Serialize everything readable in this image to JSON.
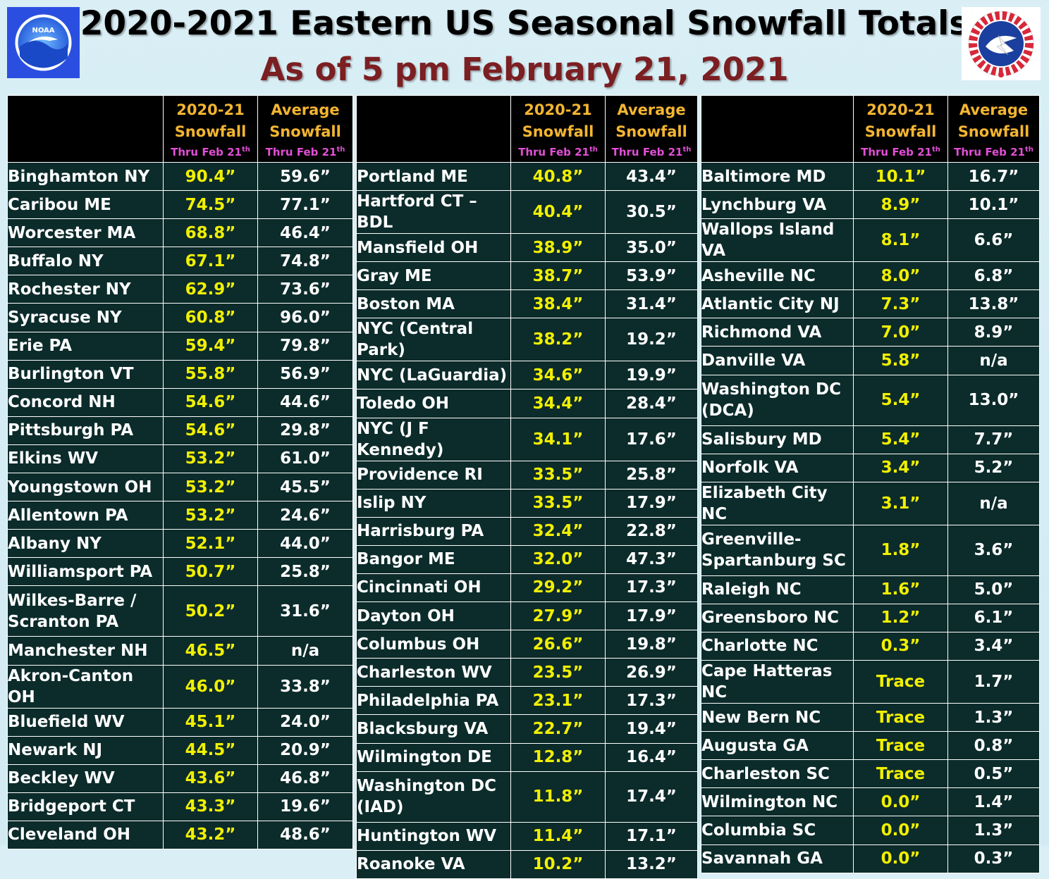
{
  "header": {
    "title": "2020-2021 Eastern US Seasonal Snowfall Totals",
    "subtitle": "As of 5 pm February 21, 2021",
    "left_logo": "NOAA",
    "right_logo": "National Weather Service"
  },
  "columns": {
    "current_l1": "2020-21",
    "current_l2": "Snowfall",
    "average_l1": "Average",
    "average_l2": "Snowfall",
    "thru": "Thru Feb 21",
    "thru_sup": "th"
  },
  "colors": {
    "current": "#f0f000",
    "header_gold": "#f3b531",
    "header_pink": "#e24fd6",
    "cell_bg": "#0c2b2b",
    "title_red": "#7b1f22"
  },
  "tables": [
    {
      "rows": [
        {
          "city": "Binghamton NY",
          "current": "90.4”",
          "average": "59.6”"
        },
        {
          "city": "Caribou ME",
          "current": "74.5”",
          "average": "77.1”"
        },
        {
          "city": "Worcester MA",
          "current": "68.8”",
          "average": "46.4”"
        },
        {
          "city": "Buffalo NY",
          "current": "67.1”",
          "average": "74.8”"
        },
        {
          "city": "Rochester NY",
          "current": "62.9”",
          "average": "73.6”"
        },
        {
          "city": "Syracuse NY",
          "current": "60.8”",
          "average": "96.0”"
        },
        {
          "city": "Erie PA",
          "current": "59.4”",
          "average": "79.8”"
        },
        {
          "city": "Burlington VT",
          "current": "55.8”",
          "average": "56.9”"
        },
        {
          "city": "Concord NH",
          "current": "54.6”",
          "average": "44.6”"
        },
        {
          "city": "Pittsburgh PA",
          "current": "54.6”",
          "average": "29.8”"
        },
        {
          "city": "Elkins WV",
          "current": "53.2”",
          "average": "61.0”"
        },
        {
          "city": "Youngstown OH",
          "current": "53.2”",
          "average": "45.5”"
        },
        {
          "city": "Allentown PA",
          "current": "53.2”",
          "average": "24.6”"
        },
        {
          "city": "Albany NY",
          "current": "52.1”",
          "average": "44.0”"
        },
        {
          "city": "Williamsport PA",
          "current": "50.7”",
          "average": "25.8”"
        },
        {
          "city": "Wilkes-Barre / Scranton PA",
          "current": "50.2”",
          "average": "31.6”",
          "tall": true
        },
        {
          "city": "Manchester NH",
          "current": "46.5”",
          "average": "n/a"
        },
        {
          "city": "Akron-Canton OH",
          "current": "46.0”",
          "average": "33.8”"
        },
        {
          "city": "Bluefield WV",
          "current": "45.1”",
          "average": "24.0”"
        },
        {
          "city": "Newark NJ",
          "current": "44.5”",
          "average": "20.9”"
        },
        {
          "city": "Beckley WV",
          "current": "43.6”",
          "average": "46.8”"
        },
        {
          "city": "Bridgeport CT",
          "current": "43.3”",
          "average": "19.6”"
        },
        {
          "city": "Cleveland OH",
          "current": "43.2”",
          "average": "48.6”"
        }
      ]
    },
    {
      "rows": [
        {
          "city": "Portland ME",
          "current": "40.8”",
          "average": "43.4”"
        },
        {
          "city": "Hartford CT – BDL",
          "current": "40.4”",
          "average": "30.5”"
        },
        {
          "city": "Mansfield OH",
          "current": "38.9”",
          "average": "35.0”"
        },
        {
          "city": "Gray ME",
          "current": "38.7”",
          "average": "53.9”"
        },
        {
          "city": "Boston MA",
          "current": "38.4”",
          "average": "31.4”"
        },
        {
          "city": "NYC (Central Park)",
          "current": "38.2”",
          "average": "19.2”"
        },
        {
          "city": "NYC (LaGuardia)",
          "current": "34.6”",
          "average": "19.9”"
        },
        {
          "city": "Toledo OH",
          "current": "34.4”",
          "average": "28.4”"
        },
        {
          "city": "NYC (J F Kennedy)",
          "current": "34.1”",
          "average": "17.6”"
        },
        {
          "city": "Providence RI",
          "current": "33.5”",
          "average": "25.8”"
        },
        {
          "city": "Islip NY",
          "current": "33.5”",
          "average": "17.9”"
        },
        {
          "city": "Harrisburg PA",
          "current": "32.4”",
          "average": "22.8”"
        },
        {
          "city": "Bangor ME",
          "current": "32.0”",
          "average": "47.3”"
        },
        {
          "city": "Cincinnati OH",
          "current": "29.2”",
          "average": "17.3”"
        },
        {
          "city": "Dayton OH",
          "current": "27.9”",
          "average": "17.9”"
        },
        {
          "city": "Columbus OH",
          "current": "26.6”",
          "average": "19.8”"
        },
        {
          "city": "Charleston WV",
          "current": "23.5”",
          "average": "26.9”"
        },
        {
          "city": "Philadelphia PA",
          "current": "23.1”",
          "average": "17.3”"
        },
        {
          "city": "Blacksburg VA",
          "current": "22.7”",
          "average": "19.4”"
        },
        {
          "city": "Wilmington DE",
          "current": "12.8”",
          "average": "16.4”"
        },
        {
          "city": "Washington DC (IAD)",
          "current": "11.8”",
          "average": "17.4”",
          "tall": true
        },
        {
          "city": "Huntington WV",
          "current": "11.4”",
          "average": "17.1”"
        },
        {
          "city": "Roanoke VA",
          "current": "10.2”",
          "average": "13.2”"
        }
      ]
    },
    {
      "rows": [
        {
          "city": "Baltimore MD",
          "current": "10.1”",
          "average": "16.7”"
        },
        {
          "city": "Lynchburg VA",
          "current": "8.9”",
          "average": "10.1”"
        },
        {
          "city": "Wallops Island VA",
          "current": "8.1”",
          "average": "6.6”"
        },
        {
          "city": "Asheville NC",
          "current": "8.0”",
          "average": "6.8”"
        },
        {
          "city": "Atlantic City NJ",
          "current": "7.3”",
          "average": "13.8”"
        },
        {
          "city": "Richmond VA",
          "current": "7.0”",
          "average": "8.9”"
        },
        {
          "city": "Danville VA",
          "current": "5.8”",
          "average": "n/a"
        },
        {
          "city": "Washington DC (DCA)",
          "current": "5.4”",
          "average": "13.0”",
          "tall": true
        },
        {
          "city": "Salisbury MD",
          "current": "5.4”",
          "average": "7.7”"
        },
        {
          "city": "Norfolk VA",
          "current": "3.4”",
          "average": "5.2”"
        },
        {
          "city": "Elizabeth City NC",
          "current": "3.1”",
          "average": "n/a"
        },
        {
          "city": "Greenville-Spartanburg SC",
          "current": "1.8”",
          "average": "3.6”",
          "tall": true
        },
        {
          "city": "Raleigh NC",
          "current": "1.6”",
          "average": "5.0”"
        },
        {
          "city": "Greensboro NC",
          "current": "1.2”",
          "average": "6.1”"
        },
        {
          "city": "Charlotte NC",
          "current": "0.3”",
          "average": "3.4”"
        },
        {
          "city": "Cape Hatteras NC",
          "current": "Trace",
          "average": "1.7”"
        },
        {
          "city": "New Bern NC",
          "current": "Trace",
          "average": "1.3”"
        },
        {
          "city": "Augusta GA",
          "current": "Trace",
          "average": "0.8”"
        },
        {
          "city": "Charleston SC",
          "current": "Trace",
          "average": "0.5”"
        },
        {
          "city": "Wilmington NC",
          "current": "0.0”",
          "average": "1.4”"
        },
        {
          "city": "Columbia SC",
          "current": "0.0”",
          "average": "1.3”"
        },
        {
          "city": "Savannah GA",
          "current": "0.0”",
          "average": "0.3”"
        }
      ]
    }
  ]
}
